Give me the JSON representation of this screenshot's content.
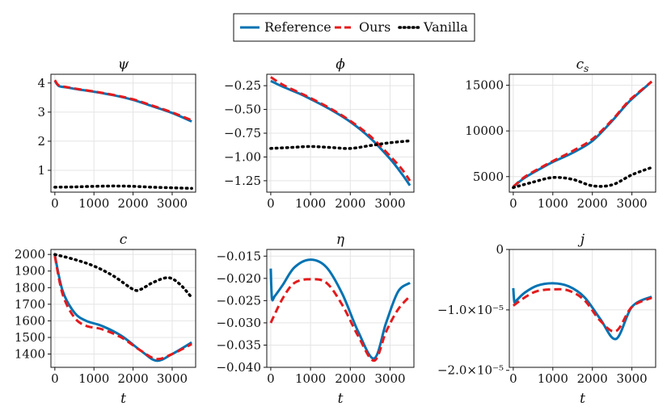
{
  "legend": {
    "entries": [
      {
        "label": "Reference",
        "color": "#0072b2",
        "dash": "solid"
      },
      {
        "label": "Ours",
        "color": "#e41a1c",
        "dash": "dashed"
      },
      {
        "label": "Vanilla",
        "color": "#000000",
        "dash": "dotted"
      }
    ]
  },
  "chart_data": [
    {
      "type": "line",
      "title": "ψ",
      "xlabel": "",
      "xlim": [
        -100,
        3600
      ],
      "ylim": [
        0.25,
        4.3
      ],
      "xticks": [
        0,
        1000,
        2000,
        3000
      ],
      "xtick_labels": [
        "0",
        "1000",
        "2000",
        "3000"
      ],
      "yticks": [
        1,
        2,
        3,
        4
      ],
      "ytick_labels": [
        "1",
        "2",
        "3",
        "4"
      ],
      "series": [
        {
          "name": "Reference",
          "color": "#0072b2",
          "dash": "solid",
          "x": [
            0,
            100,
            300,
            600,
            1000,
            1500,
            2000,
            2500,
            3000,
            3500
          ],
          "y": [
            4.08,
            3.9,
            3.85,
            3.78,
            3.7,
            3.58,
            3.42,
            3.2,
            2.97,
            2.68
          ]
        },
        {
          "name": "Ours",
          "color": "#e41a1c",
          "dash": "dashed",
          "x": [
            0,
            100,
            300,
            600,
            1000,
            1500,
            2000,
            2500,
            3000,
            3500
          ],
          "y": [
            4.1,
            3.92,
            3.86,
            3.79,
            3.71,
            3.59,
            3.44,
            3.22,
            2.99,
            2.72
          ]
        },
        {
          "name": "Vanilla",
          "color": "#000000",
          "dash": "dotted",
          "x": [
            0,
            500,
            1000,
            1500,
            2000,
            2500,
            3000,
            3500
          ],
          "y": [
            0.42,
            0.43,
            0.45,
            0.46,
            0.45,
            0.42,
            0.4,
            0.38
          ]
        }
      ]
    },
    {
      "type": "line",
      "title": "ϕ",
      "xlabel": "",
      "xlim": [
        -100,
        3600
      ],
      "ylim": [
        -1.37,
        -0.13
      ],
      "xticks": [
        0,
        1000,
        2000,
        3000
      ],
      "xtick_labels": [
        "0",
        "1000",
        "2000",
        "3000"
      ],
      "yticks": [
        -0.25,
        -0.5,
        -0.75,
        -1.0,
        -1.25
      ],
      "ytick_labels": [
        "−0.25",
        "−0.50",
        "−0.75",
        "−1.00",
        "−1.25"
      ],
      "series": [
        {
          "name": "Reference",
          "color": "#0072b2",
          "dash": "solid",
          "x": [
            0,
            300,
            700,
            1000,
            1500,
            2000,
            2500,
            3000,
            3300,
            3500
          ],
          "y": [
            -0.2,
            -0.26,
            -0.33,
            -0.39,
            -0.5,
            -0.63,
            -0.8,
            -1.02,
            -1.18,
            -1.3
          ]
        },
        {
          "name": "Ours",
          "color": "#e41a1c",
          "dash": "dashed",
          "x": [
            0,
            300,
            700,
            1000,
            1500,
            2000,
            2500,
            3000,
            3300,
            3500
          ],
          "y": [
            -0.16,
            -0.24,
            -0.32,
            -0.38,
            -0.49,
            -0.62,
            -0.78,
            -0.99,
            -1.13,
            -1.25
          ]
        },
        {
          "name": "Vanilla",
          "color": "#000000",
          "dash": "dotted",
          "x": [
            0,
            500,
            1000,
            1500,
            2000,
            2500,
            3000,
            3500
          ],
          "y": [
            -0.91,
            -0.9,
            -0.89,
            -0.9,
            -0.91,
            -0.88,
            -0.85,
            -0.83
          ]
        }
      ]
    },
    {
      "type": "line",
      "title": "c_s",
      "xlabel": "",
      "xlim": [
        -100,
        3600
      ],
      "ylim": [
        3300,
        16200
      ],
      "xticks": [
        0,
        1000,
        2000,
        3000
      ],
      "xtick_labels": [
        "0",
        "1000",
        "2000",
        "3000"
      ],
      "yticks": [
        5000,
        10000,
        15000
      ],
      "ytick_labels": [
        "5000",
        "10000",
        "15000"
      ],
      "series": [
        {
          "name": "Reference",
          "color": "#0072b2",
          "dash": "solid",
          "x": [
            0,
            300,
            700,
            1000,
            1500,
            2000,
            2500,
            2800,
            3000,
            3500
          ],
          "y": [
            3900,
            4900,
            5900,
            6600,
            7600,
            8900,
            11100,
            12600,
            13500,
            15400
          ]
        },
        {
          "name": "Ours",
          "color": "#e41a1c",
          "dash": "dashed",
          "x": [
            0,
            300,
            700,
            1000,
            1500,
            2000,
            2500,
            2800,
            3000,
            3500
          ],
          "y": [
            3900,
            5000,
            6000,
            6700,
            7800,
            9100,
            11200,
            12700,
            13600,
            15400
          ]
        },
        {
          "name": "Vanilla",
          "color": "#000000",
          "dash": "dotted",
          "x": [
            0,
            500,
            1000,
            1500,
            2000,
            2500,
            3000,
            3500
          ],
          "y": [
            3800,
            4400,
            4900,
            4700,
            4000,
            4100,
            5200,
            6000
          ]
        }
      ]
    },
    {
      "type": "line",
      "title": "c",
      "xlabel": "t",
      "xlim": [
        -100,
        3600
      ],
      "ylim": [
        1320,
        2030
      ],
      "xticks": [
        0,
        1000,
        2000,
        3000
      ],
      "xtick_labels": [
        "0",
        "1000",
        "2000",
        "3000"
      ],
      "yticks": [
        1400,
        1500,
        1600,
        1700,
        1800,
        1900,
        2000
      ],
      "ytick_labels": [
        "1400",
        "1500",
        "1600",
        "1700",
        "1800",
        "1900",
        "2000"
      ],
      "series": [
        {
          "name": "Reference",
          "color": "#0072b2",
          "dash": "solid",
          "x": [
            0,
            200,
            500,
            800,
            1200,
            1700,
            2200,
            2600,
            3000,
            3500
          ],
          "y": [
            1995,
            1780,
            1650,
            1600,
            1570,
            1510,
            1420,
            1360,
            1400,
            1470
          ]
        },
        {
          "name": "Ours",
          "color": "#e41a1c",
          "dash": "dashed",
          "x": [
            0,
            200,
            500,
            800,
            1200,
            1700,
            2200,
            2600,
            3000,
            3500
          ],
          "y": [
            1990,
            1760,
            1620,
            1570,
            1550,
            1500,
            1420,
            1370,
            1400,
            1460
          ]
        },
        {
          "name": "Vanilla",
          "color": "#000000",
          "dash": "dotted",
          "x": [
            0,
            500,
            1000,
            1500,
            2000,
            2200,
            2500,
            2900,
            3200,
            3500
          ],
          "y": [
            2000,
            1970,
            1930,
            1870,
            1790,
            1790,
            1830,
            1860,
            1820,
            1740
          ]
        }
      ]
    },
    {
      "type": "line",
      "title": "η",
      "xlabel": "t",
      "xlim": [
        -100,
        3600
      ],
      "ylim": [
        -0.04,
        -0.0135
      ],
      "xticks": [
        0,
        1000,
        2000,
        3000
      ],
      "xtick_labels": [
        "0",
        "1000",
        "2000",
        "3000"
      ],
      "yticks": [
        -0.015,
        -0.02,
        -0.025,
        -0.03,
        -0.035,
        -0.04
      ],
      "ytick_labels": [
        "−0.015",
        "−0.020",
        "−0.025",
        "−0.030",
        "−0.035",
        "−0.040"
      ],
      "series": [
        {
          "name": "Reference",
          "color": "#0072b2",
          "dash": "solid",
          "x": [
            0,
            30,
            100,
            300,
            600,
            1000,
            1400,
            1800,
            2200,
            2600,
            2900,
            3200,
            3500
          ],
          "y": [
            -0.0178,
            -0.0245,
            -0.024,
            -0.0215,
            -0.0175,
            -0.0158,
            -0.0175,
            -0.0235,
            -0.032,
            -0.038,
            -0.03,
            -0.023,
            -0.021
          ]
        },
        {
          "name": "Ours",
          "color": "#e41a1c",
          "dash": "dashed",
          "x": [
            0,
            300,
            600,
            1000,
            1400,
            1800,
            2200,
            2600,
            2900,
            3200,
            3500
          ],
          "y": [
            -0.03,
            -0.0245,
            -0.021,
            -0.0202,
            -0.021,
            -0.026,
            -0.033,
            -0.0385,
            -0.032,
            -0.027,
            -0.024
          ]
        }
      ]
    },
    {
      "type": "line",
      "title": "j",
      "xlabel": "t",
      "xlim": [
        -100,
        3600
      ],
      "ylim": [
        -1.95e-05,
        0
      ],
      "xticks": [
        0,
        1000,
        2000,
        3000
      ],
      "xtick_labels": [
        "0",
        "1000",
        "2000",
        "3000"
      ],
      "yticks": [
        0,
        -1e-05,
        -2e-05
      ],
      "ytick_labels": [
        "0",
        "−1.0×10⁻⁵",
        "−2.0×10⁻⁵"
      ],
      "series": [
        {
          "name": "Reference",
          "color": "#0072b2",
          "dash": "solid",
          "x": [
            0,
            30,
            100,
            300,
            600,
            1000,
            1400,
            1800,
            2200,
            2600,
            3000,
            3500
          ],
          "y": [
            -6.4e-06,
            -8.7e-06,
            -8.3e-06,
            -7.1e-06,
            -6e-06,
            -5.6e-06,
            -6.1e-06,
            -7.9e-06,
            -1.15e-05,
            -1.48e-05,
            -9.5e-06,
            -7.8e-06
          ]
        },
        {
          "name": "Ours",
          "color": "#e41a1c",
          "dash": "dashed",
          "x": [
            0,
            300,
            600,
            1000,
            1400,
            1800,
            2200,
            2600,
            3000,
            3500
          ],
          "y": [
            -9.3e-06,
            -7.9e-06,
            -6.9e-06,
            -6.6e-06,
            -6.8e-06,
            -8.4e-06,
            -1.18e-05,
            -1.35e-05,
            -9.5e-06,
            -8e-06
          ]
        }
      ]
    }
  ]
}
